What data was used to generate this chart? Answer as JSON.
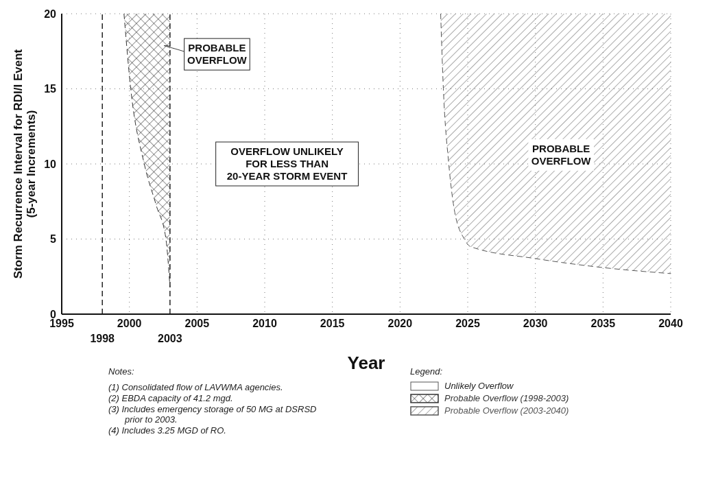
{
  "chart_data": {
    "type": "line",
    "line_style": "dashed",
    "xlabel": "Year",
    "ylabel": "Storm Recurrence Interval for RDI/I Event\n(5-year Increments)",
    "legend_title": "Legend:",
    "xlim": [
      1995,
      2040
    ],
    "xticks": [
      1995,
      2000,
      2005,
      2010,
      2015,
      2020,
      2025,
      2030,
      2035,
      2040
    ],
    "ylim": [
      0,
      20
    ],
    "yticks": [
      0,
      5,
      10,
      15,
      20
    ],
    "grid": true,
    "legend": "bottom",
    "series": [
      {
        "name": "Probable Overflow (1998-2003)",
        "color": "#333333",
        "x": [
          1999.6,
          2000.1,
          2001.1,
          2002,
          2002.7,
          2003
        ],
        "values": [
          20,
          15,
          10,
          7.2,
          5,
          1.8
        ],
        "lower": [
          20,
          15,
          10,
          7.2,
          5,
          1.8
        ],
        "upper": [
          20,
          20,
          20,
          20,
          20,
          20
        ]
      },
      {
        "name": "Probable Overflow (2003-2040)",
        "color": "#555555",
        "x": [
          2023,
          2023.2,
          2023.6,
          2024,
          2024.75,
          2025.2,
          2030,
          2035,
          2040
        ],
        "values": [
          20,
          15,
          10,
          7,
          5,
          4.5,
          3.7,
          3.1,
          2.7
        ],
        "lower": [
          20,
          15,
          10,
          7,
          5,
          4.5,
          3.7,
          3.1,
          2.7
        ],
        "upper": [
          20,
          20,
          20,
          20,
          20,
          20,
          20,
          20,
          20
        ]
      }
    ],
    "ref_lines": [
      {
        "axis": "x",
        "value": 1998,
        "label": "1998",
        "line_style": "dashed",
        "color": "#222222"
      },
      {
        "axis": "x",
        "value": 2003,
        "label": "2003",
        "line_style": "dashed",
        "color": "#222222"
      }
    ],
    "annotations": [
      "PROBABLE\nOVERFLOW",
      "OVERFLOW UNLIKELY\nFOR LESS THAN\n20-YEAR STORM EVENT",
      "PROBABLE\nOVERFLOW",
      "Notes:",
      "(1) Consolidated flow of LAVWMA agencies.",
      "(2) EBDA capacity of 41.2 mgd.",
      "(3) Includes emergency storage of 50 MG at DSRSD prior to 2003.",
      "(4) Includes 3.25 MGD of RO.",
      "Unlikely Overflow"
    ]
  }
}
